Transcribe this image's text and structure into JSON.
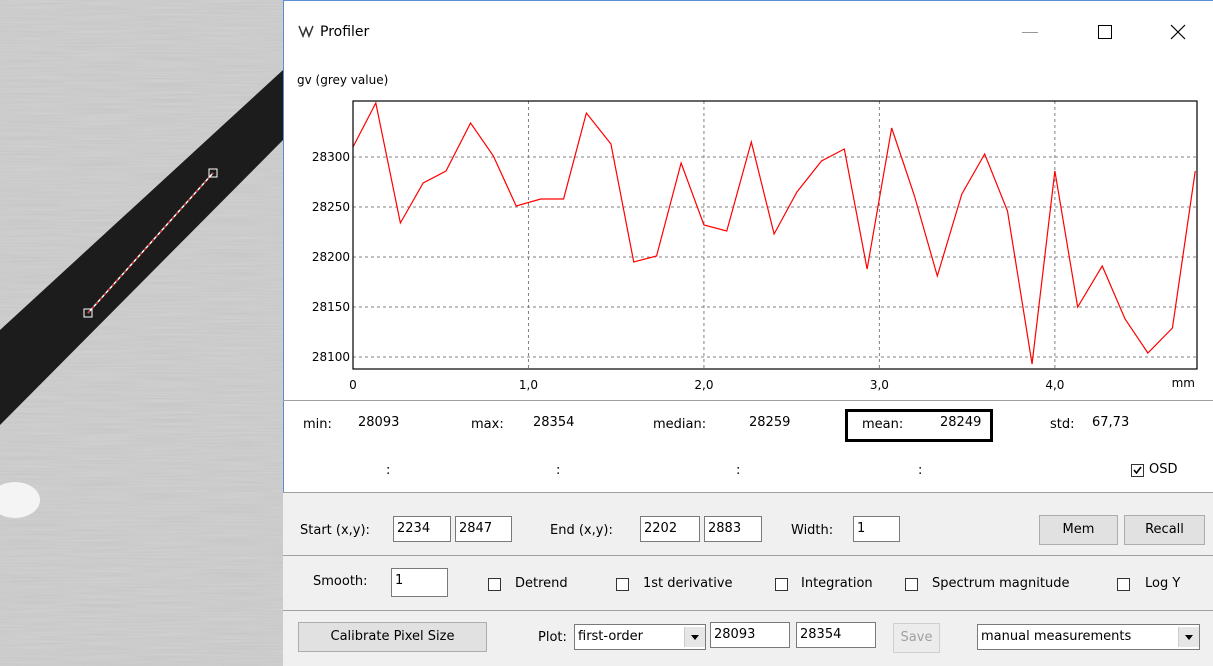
{
  "window": {
    "title": "Profiler"
  },
  "chart_data": {
    "type": "line",
    "ylabel": "gv (grey value)",
    "xlabel": "mm",
    "x": [
      0,
      0.13,
      0.27,
      0.4,
      0.53,
      0.67,
      0.8,
      0.93,
      1.07,
      1.2,
      1.33,
      1.47,
      1.6,
      1.73,
      1.87,
      2.0,
      2.13,
      2.27,
      2.4,
      2.53,
      2.67,
      2.8,
      2.93,
      3.07,
      3.2,
      3.33,
      3.47,
      3.6,
      3.73,
      3.87,
      4.0,
      4.13,
      4.27,
      4.4,
      4.53,
      4.67,
      4.8
    ],
    "values": [
      28310,
      28354,
      28234,
      28274,
      28286,
      28334,
      28301,
      28251,
      28258,
      28258,
      28344,
      28313,
      28195,
      28201,
      28294,
      28232,
      28226,
      28315,
      28223,
      28265,
      28296,
      28308,
      28188,
      28329,
      28261,
      28181,
      28263,
      28303,
      28246,
      28093,
      28286,
      28150,
      28191,
      28138,
      28104,
      28129,
      28286
    ],
    "color": "#ff0000",
    "xlim": [
      0,
      4.81
    ],
    "ylim": [
      28088,
      28356
    ],
    "xticks": [
      0,
      {
        "value": 1,
        "label": "1,0"
      },
      {
        "value": 2,
        "label": "2,0"
      },
      {
        "value": 3,
        "label": "3,0"
      },
      {
        "value": 4,
        "label": "4,0"
      }
    ],
    "yticks": [
      28100,
      28150,
      28200,
      28250,
      28300
    ],
    "grid": true
  },
  "stats": [
    {
      "label": "min:",
      "value": "28093"
    },
    {
      "label": "max:",
      "value": "28354"
    },
    {
      "label": "median:",
      "value": "28259"
    },
    {
      "label": "mean:",
      "value": "28249"
    },
    {
      "label": "std:",
      "value": "67,73"
    }
  ],
  "cursor_readouts": [
    ":",
    ":",
    ":",
    ":"
  ],
  "osd": {
    "label": "OSD",
    "checked": true
  },
  "row1": {
    "start_label": "Start (x,y):",
    "start_x": "2234",
    "start_y": "2847",
    "end_label": "End (x,y):",
    "end_x": "2202",
    "end_y": "2883",
    "width_label": "Width:",
    "width": "1",
    "mem": "Mem",
    "recall": "Recall"
  },
  "row2": {
    "smooth_label": "Smooth:",
    "smooth": "1",
    "options": [
      {
        "label": "Detrend",
        "checked": false
      },
      {
        "label": "1st derivative",
        "checked": false
      },
      {
        "label": "Integration",
        "checked": false
      },
      {
        "label": "Spectrum magnitude",
        "checked": false
      },
      {
        "label": "Log Y",
        "checked": false
      }
    ]
  },
  "row3": {
    "calibrate": "Calibrate Pixel Size",
    "plot_label": "Plot:",
    "plot_mode": "first-order",
    "low": "28093",
    "high": "28354",
    "save": "Save",
    "measure_mode": "manual measurements"
  }
}
